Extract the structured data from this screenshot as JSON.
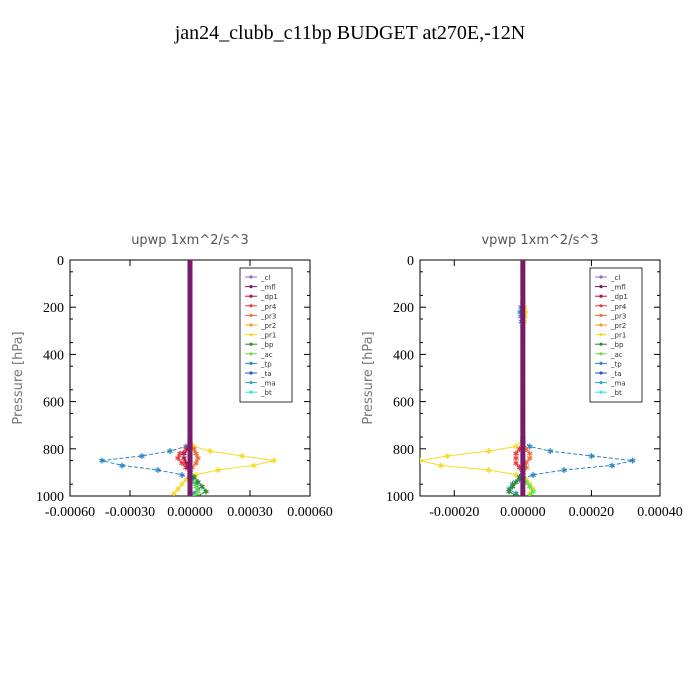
{
  "page": {
    "title": "jan24_clubb_c11bp  BUDGET at270E,-12N"
  },
  "colors": {
    "_cl": "#8e6cc0",
    "_mfl": "#7a1a6a",
    "_dp1": "#b0124a",
    "_pr4": "#e83a3a",
    "_pr3": "#f0703a",
    "_pr2": "#f2a020",
    "_pr1": "#f5dc2a",
    "_bp": "#2e8b2e",
    "_ac": "#66e04a",
    "_tp": "#2a86c8",
    "_ta": "#2a55c8",
    "_ma": "#2ab0b0",
    "_bt": "#30e6e6"
  },
  "legend_entries": [
    "_cl",
    "_mfl",
    "_dp1",
    "_pr4",
    "_pr3",
    "_pr2",
    "_pr1",
    "_bp",
    "_ac",
    "_tp",
    "_ta",
    "_ma",
    "_bt"
  ],
  "chart_data": [
    {
      "type": "line",
      "title": "upwp   1xm^2/s^3",
      "ylabel": "Pressure [hPa]",
      "xlim": [
        -0.0006,
        0.0006
      ],
      "ylim": [
        1000,
        0
      ],
      "xticks": [
        -0.0006,
        -0.0003,
        0.0,
        0.0003,
        0.0006
      ],
      "xtick_labels": [
        "-0.00060",
        "-0.00030",
        "0.00000",
        "0.00030",
        "0.00060"
      ],
      "yticks": [
        0,
        200,
        400,
        600,
        800,
        1000
      ],
      "ytick_labels": [
        "0",
        "200",
        "400",
        "600",
        "800",
        "1000"
      ],
      "legend": "top-right",
      "series": [
        {
          "name": "_tp",
          "y": [
            760,
            790,
            810,
            830,
            850,
            870,
            890,
            910,
            930,
            950,
            970,
            990
          ],
          "x": [
            0.0,
            -2e-05,
            -0.0001,
            -0.00024,
            -0.00044,
            -0.00034,
            -0.00016,
            -4e-05,
            1e-05,
            3e-05,
            4e-05,
            2e-05
          ]
        },
        {
          "name": "_pr1",
          "y": [
            760,
            790,
            810,
            830,
            850,
            870,
            890,
            910,
            930,
            950,
            970,
            990
          ],
          "x": [
            0.0,
            2e-05,
            0.0001,
            0.00026,
            0.00042,
            0.00032,
            0.00014,
            3e-05,
            -2e-05,
            -4e-05,
            -6e-05,
            -8e-05
          ]
        },
        {
          "name": "_pr4",
          "y": [
            780,
            800,
            820,
            840,
            860,
            880,
            900,
            920
          ],
          "x": [
            0.0,
            -2e-05,
            -5e-05,
            -6e-05,
            -4e-05,
            -2e-05,
            0.0,
            0.0
          ]
        },
        {
          "name": "_pr3",
          "y": [
            780,
            800,
            820,
            840,
            860,
            880,
            900
          ],
          "x": [
            0.0,
            2e-05,
            3e-05,
            4e-05,
            3e-05,
            1e-05,
            0.0
          ]
        },
        {
          "name": "_dp1",
          "y": [
            780,
            800,
            820,
            840,
            860,
            880,
            900,
            920
          ],
          "x": [
            0.0,
            -1e-05,
            -3e-05,
            -3e-05,
            -2e-05,
            -1e-05,
            0.0,
            0.0
          ]
        },
        {
          "name": "_bp",
          "y": [
            900,
            920,
            940,
            960,
            980,
            1000
          ],
          "x": [
            0.0,
            2e-05,
            4e-05,
            6e-05,
            8e-05,
            4e-05
          ]
        },
        {
          "name": "_ac",
          "y": [
            920,
            940,
            960,
            980,
            1000
          ],
          "x": [
            0.0,
            1e-05,
            3e-05,
            4e-05,
            2e-05
          ]
        },
        {
          "name": "_mfl",
          "y": [
            0,
            20,
            40,
            60,
            80,
            100,
            120,
            140,
            160,
            180,
            200,
            220,
            240,
            260,
            280,
            300,
            320,
            340,
            360,
            380,
            400,
            420,
            440,
            460,
            480,
            500,
            520,
            540,
            560,
            580,
            600,
            620,
            640,
            660,
            680,
            700,
            720,
            740,
            760,
            780,
            800,
            820,
            840,
            860,
            880,
            900,
            920,
            940,
            960,
            980,
            1000
          ],
          "x": [
            0,
            0,
            0,
            0,
            0,
            0,
            0,
            0,
            0,
            0,
            0,
            0,
            0,
            0,
            0,
            0,
            0,
            0,
            0,
            0,
            0,
            0,
            0,
            0,
            0,
            0,
            0,
            0,
            0,
            0,
            0,
            0,
            0,
            0,
            0,
            0,
            0,
            0,
            0,
            0,
            0,
            0,
            0,
            0,
            0,
            0,
            0,
            0,
            0,
            0,
            0
          ]
        }
      ]
    },
    {
      "type": "line",
      "title": "vpwp   1xm^2/s^3",
      "ylabel": "Pressure [hPa]",
      "xlim": [
        -0.0003,
        0.0004
      ],
      "ylim": [
        1000,
        0
      ],
      "xticks": [
        -0.0002,
        0.0,
        0.0002,
        0.0004
      ],
      "xtick_labels": [
        "-0.00020",
        "0.00000",
        "0.00020",
        "0.00040"
      ],
      "yticks": [
        0,
        200,
        400,
        600,
        800,
        1000
      ],
      "ytick_labels": [
        "0",
        "200",
        "400",
        "600",
        "800",
        "1000"
      ],
      "legend": "top-right",
      "series": [
        {
          "name": "_pr1",
          "y": [
            760,
            790,
            810,
            830,
            850,
            870,
            890,
            910,
            930,
            950,
            970,
            990
          ],
          "x": [
            0.0,
            -2e-05,
            -0.0001,
            -0.00022,
            -0.0003,
            -0.00024,
            -0.0001,
            -2e-05,
            1e-05,
            2e-05,
            3e-05,
            2e-05
          ]
        },
        {
          "name": "_tp",
          "y": [
            760,
            790,
            810,
            830,
            850,
            870,
            890,
            910,
            930,
            950,
            970,
            990
          ],
          "x": [
            0.0,
            2e-05,
            8e-05,
            0.0002,
            0.00032,
            0.00026,
            0.00012,
            3e-05,
            -1e-05,
            -3e-05,
            -4e-05,
            -2e-05
          ]
        },
        {
          "name": "_pr4",
          "y": [
            780,
            800,
            820,
            840,
            860,
            880,
            900,
            920
          ],
          "x": [
            0.0,
            -1e-05,
            -2e-05,
            -2e-05,
            -2e-05,
            -1e-05,
            0.0,
            0.0
          ]
        },
        {
          "name": "_pr3",
          "y": [
            780,
            800,
            820,
            840,
            860,
            880,
            900
          ],
          "x": [
            0.0,
            1e-05,
            2e-05,
            2e-05,
            1e-05,
            1e-05,
            0.0
          ]
        },
        {
          "name": "_tp_upper",
          "y": [
            180,
            200,
            220,
            240,
            260,
            280
          ],
          "x": [
            0.0,
            -5e-06,
            -8e-06,
            -6e-06,
            -4e-06,
            0.0
          ]
        },
        {
          "name": "_pr1_upper",
          "y": [
            180,
            200,
            220,
            240,
            260,
            280
          ],
          "x": [
            0.0,
            5e-06,
            8e-06,
            6e-06,
            4e-06,
            0.0
          ]
        },
        {
          "name": "_bp",
          "y": [
            900,
            920,
            940,
            960,
            980,
            1000
          ],
          "x": [
            0.0,
            -1e-05,
            -2e-05,
            -3e-05,
            -4e-05,
            -2e-05
          ]
        },
        {
          "name": "_ac",
          "y": [
            920,
            940,
            960,
            980,
            1000
          ],
          "x": [
            0.0,
            1e-05,
            2e-05,
            3e-05,
            2e-05
          ]
        },
        {
          "name": "_mfl",
          "y": [
            0,
            20,
            40,
            60,
            80,
            100,
            120,
            140,
            160,
            180,
            200,
            220,
            240,
            260,
            280,
            300,
            320,
            340,
            360,
            380,
            400,
            420,
            440,
            460,
            480,
            500,
            520,
            540,
            560,
            580,
            600,
            620,
            640,
            660,
            680,
            700,
            720,
            740,
            760,
            780,
            800,
            820,
            840,
            860,
            880,
            900,
            920,
            940,
            960,
            980,
            1000
          ],
          "x": [
            0,
            0,
            0,
            0,
            0,
            0,
            0,
            0,
            0,
            0,
            0,
            0,
            0,
            0,
            0,
            0,
            0,
            0,
            0,
            0,
            0,
            0,
            0,
            0,
            0,
            0,
            0,
            0,
            0,
            0,
            0,
            0,
            0,
            0,
            0,
            0,
            0,
            0,
            0,
            0,
            0,
            0,
            0,
            0,
            0,
            0,
            0,
            0,
            0,
            0,
            0
          ]
        }
      ]
    }
  ]
}
